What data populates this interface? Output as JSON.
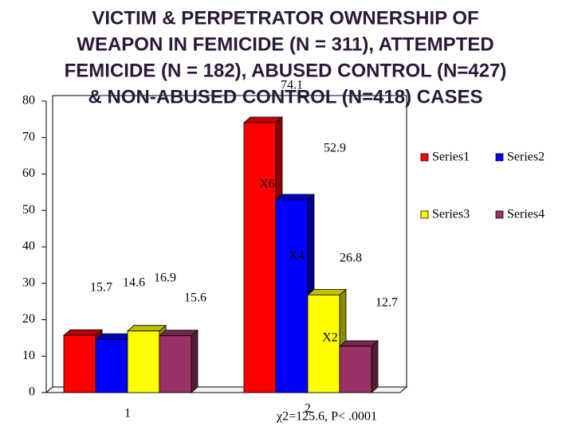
{
  "chart_data": {
    "type": "bar",
    "title": [
      "VICTIM & PERPETRATOR OWNERSHIP OF",
      "WEAPON IN FEMICIDE (N = 311), ATTEMPTED",
      "FEMICIDE (N = 182), ABUSED CONTROL (N=427)",
      "& NON-ABUSED CONTROL (N=418) CASES"
    ],
    "categories": [
      "1",
      "2"
    ],
    "series": [
      {
        "name": "Series1",
        "color": "#ff0000",
        "values": [
          15.7,
          74.1
        ]
      },
      {
        "name": "Series2",
        "color": "#0000ff",
        "values": [
          14.6,
          52.9
        ]
      },
      {
        "name": "Series3",
        "color": "#ffff00",
        "values": [
          16.9,
          26.8
        ]
      },
      {
        "name": "Series4",
        "color": "#993366",
        "values": [
          15.6,
          12.7
        ]
      }
    ],
    "ylim": [
      0,
      80
    ],
    "yticks": [
      0,
      10,
      20,
      30,
      40,
      50,
      60,
      70,
      80
    ],
    "grid": false,
    "legend": "right",
    "annotations": [
      "X6",
      "X4",
      "X2",
      "χ2=125.6, P< .0001"
    ]
  }
}
